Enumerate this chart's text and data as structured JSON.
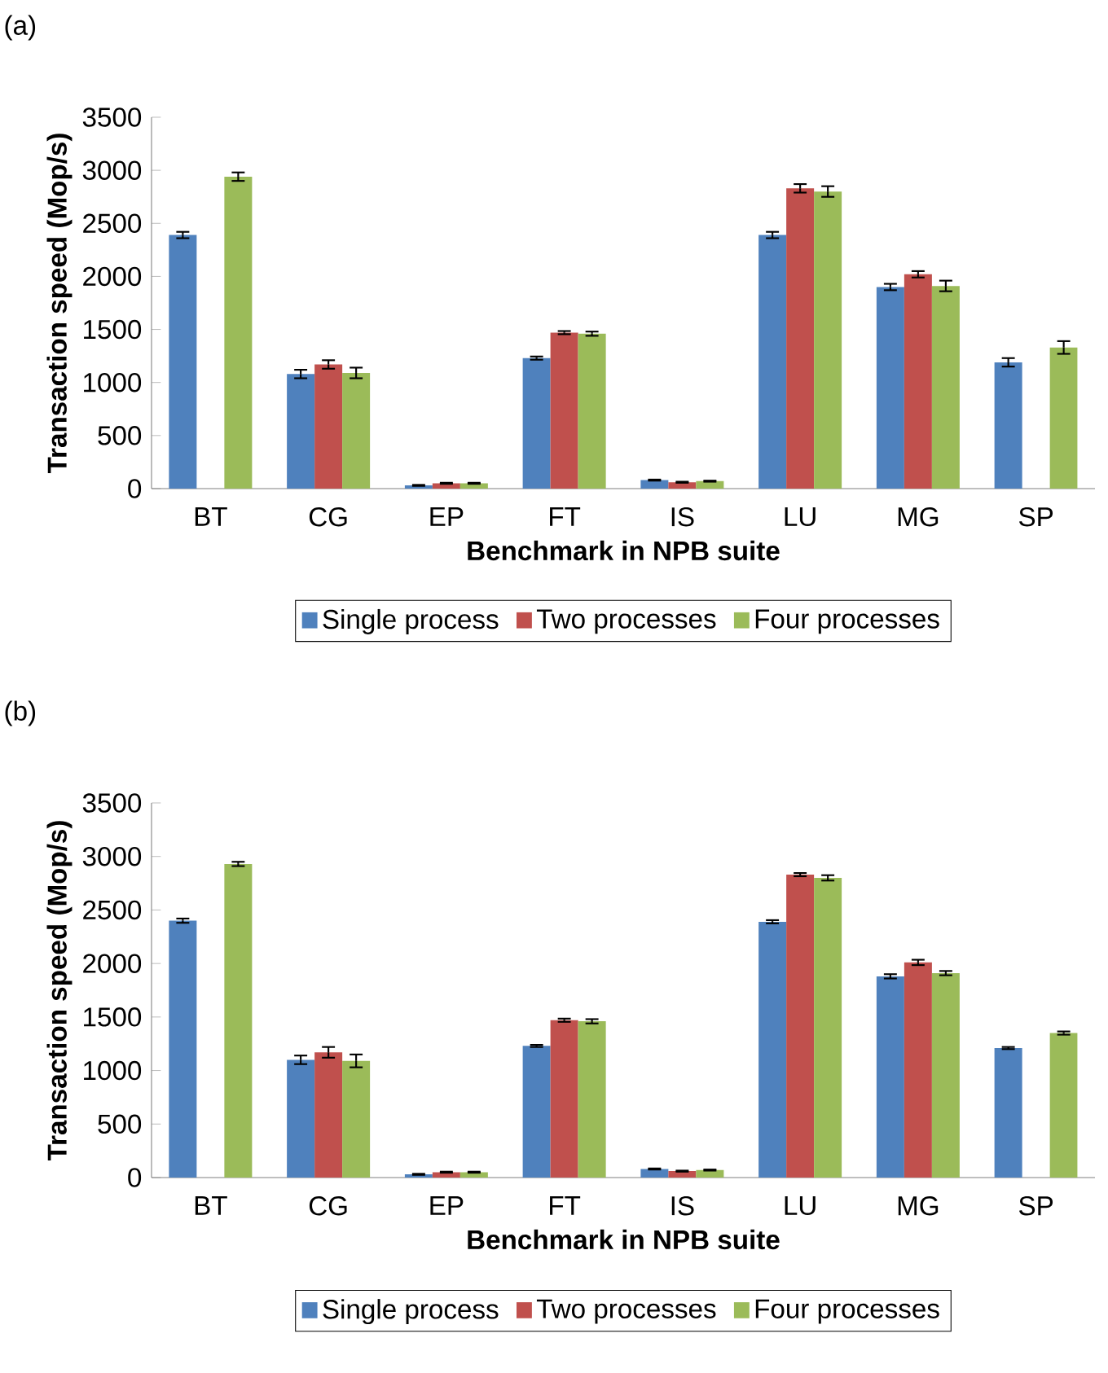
{
  "chart_data": [
    {
      "type": "bar",
      "xlabel": "Benchmark in NPB suite",
      "ylabel": "Transaction speed (Mop/s)",
      "annotations": [
        "(a)"
      ],
      "categories": [
        "BT",
        "CG",
        "EP",
        "FT",
        "IS",
        "LU",
        "MG",
        "SP"
      ],
      "series": [
        {
          "name": "Single process",
          "color": "#4f81bd",
          "values": [
            2390,
            1080,
            30,
            1230,
            80,
            2390,
            1900,
            1190
          ],
          "errors": [
            30,
            40,
            5,
            15,
            5,
            30,
            30,
            40
          ]
        },
        {
          "name": "Two processes",
          "color": "#c0504d",
          "values": [
            null,
            1170,
            50,
            1470,
            60,
            2830,
            2020,
            null
          ],
          "errors": [
            null,
            40,
            5,
            15,
            5,
            40,
            30,
            null
          ]
        },
        {
          "name": "Four processes",
          "color": "#9bbb59",
          "values": [
            2940,
            1090,
            50,
            1460,
            70,
            2800,
            1910,
            1330
          ],
          "errors": [
            40,
            50,
            5,
            20,
            5,
            50,
            50,
            60
          ]
        }
      ],
      "ylim": [
        0,
        3500
      ],
      "yticks": [
        0,
        500,
        1000,
        1500,
        2000,
        2500,
        3000,
        3500
      ],
      "grid": false,
      "legend": "bottom"
    },
    {
      "type": "bar",
      "xlabel": "Benchmark in NPB suite",
      "ylabel": "Transaction speed (Mop/s)",
      "annotations": [
        "(b)"
      ],
      "categories": [
        "BT",
        "CG",
        "EP",
        "FT",
        "IS",
        "LU",
        "MG",
        "SP"
      ],
      "series": [
        {
          "name": "Single process",
          "color": "#4f81bd",
          "values": [
            2400,
            1100,
            30,
            1230,
            80,
            2390,
            1880,
            1210
          ],
          "errors": [
            20,
            40,
            5,
            10,
            5,
            15,
            20,
            10
          ]
        },
        {
          "name": "Two processes",
          "color": "#c0504d",
          "values": [
            null,
            1170,
            50,
            1470,
            60,
            2830,
            2010,
            null
          ],
          "errors": [
            null,
            50,
            5,
            15,
            5,
            15,
            25,
            null
          ]
        },
        {
          "name": "Four processes",
          "color": "#9bbb59",
          "values": [
            2930,
            1090,
            50,
            1460,
            70,
            2800,
            1910,
            1350
          ],
          "errors": [
            20,
            60,
            5,
            20,
            5,
            25,
            20,
            15
          ]
        }
      ],
      "ylim": [
        0,
        3500
      ],
      "yticks": [
        0,
        500,
        1000,
        1500,
        2000,
        2500,
        3000,
        3500
      ],
      "grid": false,
      "legend": "bottom"
    }
  ]
}
